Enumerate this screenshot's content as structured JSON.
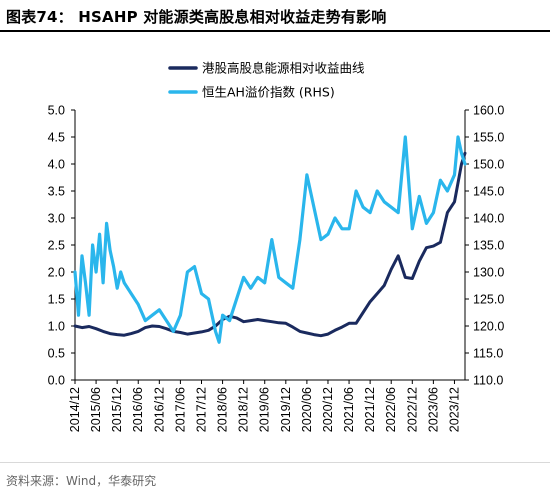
{
  "title": "图表74：  HSAHP 对能源类高股息相对收益走势有影响",
  "source": "资料来源：Wind，华泰研究",
  "colors": {
    "navy": "#1a2a5e",
    "cyan": "#2ab6ec"
  },
  "chart_data": {
    "type": "line",
    "title": "图表74：  HSAHP 对能源类高股息相对收益走势有影响",
    "x_categories": [
      "2014/12",
      "2015/06",
      "2015/12",
      "2016/06",
      "2016/12",
      "2017/06",
      "2017/12",
      "2018/06",
      "2018/12",
      "2019/06",
      "2019/12",
      "2020/06",
      "2020/12",
      "2021/06",
      "2021/12",
      "2022/06",
      "2022/12",
      "2023/06",
      "2023/12"
    ],
    "x_range": [
      "2014-12",
      "2024-03"
    ],
    "y_left": {
      "lim": [
        0.0,
        5.0
      ],
      "ticks": [
        "0.0",
        "0.5",
        "1.0",
        "1.5",
        "2.0",
        "2.5",
        "3.0",
        "3.5",
        "4.0",
        "4.5",
        "5.0"
      ]
    },
    "y_right": {
      "lim": [
        110.0,
        160.0
      ],
      "ticks": [
        "110.0",
        "115.0",
        "120.0",
        "125.0",
        "130.0",
        "135.0",
        "140.0",
        "145.0",
        "150.0",
        "155.0",
        "160.0"
      ]
    },
    "legend_position": "top-right",
    "grid": false,
    "series": [
      {
        "name": "港股高股息能源相对收益曲线",
        "axis": "left",
        "color": "#1a2a5e",
        "points": [
          [
            "2014-12",
            1.0
          ],
          [
            "2015-02",
            0.97
          ],
          [
            "2015-04",
            0.99
          ],
          [
            "2015-06",
            0.95
          ],
          [
            "2015-08",
            0.9
          ],
          [
            "2015-10",
            0.86
          ],
          [
            "2015-12",
            0.84
          ],
          [
            "2016-02",
            0.83
          ],
          [
            "2016-04",
            0.86
          ],
          [
            "2016-06",
            0.9
          ],
          [
            "2016-08",
            0.97
          ],
          [
            "2016-10",
            1.0
          ],
          [
            "2016-12",
            0.99
          ],
          [
            "2017-02",
            0.95
          ],
          [
            "2017-04",
            0.9
          ],
          [
            "2017-06",
            0.88
          ],
          [
            "2017-08",
            0.85
          ],
          [
            "2017-10",
            0.87
          ],
          [
            "2017-12",
            0.89
          ],
          [
            "2018-02",
            0.92
          ],
          [
            "2018-04",
            1.0
          ],
          [
            "2018-06",
            1.12
          ],
          [
            "2018-08",
            1.18
          ],
          [
            "2018-10",
            1.15
          ],
          [
            "2018-12",
            1.08
          ],
          [
            "2019-02",
            1.1
          ],
          [
            "2019-04",
            1.12
          ],
          [
            "2019-06",
            1.1
          ],
          [
            "2019-08",
            1.08
          ],
          [
            "2019-10",
            1.06
          ],
          [
            "2019-12",
            1.05
          ],
          [
            "2020-02",
            0.98
          ],
          [
            "2020-04",
            0.9
          ],
          [
            "2020-06",
            0.87
          ],
          [
            "2020-08",
            0.84
          ],
          [
            "2020-10",
            0.82
          ],
          [
            "2020-12",
            0.85
          ],
          [
            "2021-02",
            0.92
          ],
          [
            "2021-04",
            0.98
          ],
          [
            "2021-06",
            1.05
          ],
          [
            "2021-08",
            1.05
          ],
          [
            "2021-10",
            1.25
          ],
          [
            "2021-12",
            1.45
          ],
          [
            "2022-02",
            1.6
          ],
          [
            "2022-04",
            1.75
          ],
          [
            "2022-06",
            2.05
          ],
          [
            "2022-08",
            2.3
          ],
          [
            "2022-10",
            1.9
          ],
          [
            "2022-12",
            1.88
          ],
          [
            "2023-02",
            2.2
          ],
          [
            "2023-04",
            2.45
          ],
          [
            "2023-06",
            2.48
          ],
          [
            "2023-08",
            2.55
          ],
          [
            "2023-10",
            3.1
          ],
          [
            "2023-12",
            3.3
          ],
          [
            "2024-02",
            4.0
          ],
          [
            "2024-03",
            4.2
          ]
        ]
      },
      {
        "name": "恒生AH溢价指数 (RHS)",
        "axis": "right",
        "color": "#2ab6ec",
        "points": [
          [
            "2014-12",
            130.0
          ],
          [
            "2015-01",
            122.0
          ],
          [
            "2015-02",
            133.0
          ],
          [
            "2015-03",
            128.0
          ],
          [
            "2015-04",
            122.0
          ],
          [
            "2015-05",
            135.0
          ],
          [
            "2015-06",
            130.0
          ],
          [
            "2015-07",
            137.0
          ],
          [
            "2015-08",
            128.0
          ],
          [
            "2015-09",
            139.0
          ],
          [
            "2015-10",
            134.0
          ],
          [
            "2015-11",
            131.0
          ],
          [
            "2015-12",
            127.0
          ],
          [
            "2016-01",
            130.0
          ],
          [
            "2016-02",
            128.0
          ],
          [
            "2016-04",
            126.0
          ],
          [
            "2016-06",
            124.0
          ],
          [
            "2016-08",
            121.0
          ],
          [
            "2016-10",
            122.0
          ],
          [
            "2016-12",
            123.0
          ],
          [
            "2017-02",
            121.0
          ],
          [
            "2017-04",
            119.0
          ],
          [
            "2017-06",
            122.0
          ],
          [
            "2017-08",
            130.0
          ],
          [
            "2017-10",
            131.0
          ],
          [
            "2017-12",
            126.0
          ],
          [
            "2018-02",
            125.0
          ],
          [
            "2018-04",
            119.0
          ],
          [
            "2018-05",
            117.0
          ],
          [
            "2018-06",
            122.0
          ],
          [
            "2018-08",
            121.0
          ],
          [
            "2018-10",
            125.0
          ],
          [
            "2018-12",
            129.0
          ],
          [
            "2019-02",
            127.0
          ],
          [
            "2019-04",
            129.0
          ],
          [
            "2019-06",
            128.0
          ],
          [
            "2019-08",
            136.0
          ],
          [
            "2019-10",
            129.0
          ],
          [
            "2019-12",
            128.0
          ],
          [
            "2020-02",
            127.0
          ],
          [
            "2020-04",
            136.0
          ],
          [
            "2020-06",
            148.0
          ],
          [
            "2020-08",
            142.0
          ],
          [
            "2020-10",
            136.0
          ],
          [
            "2020-12",
            137.0
          ],
          [
            "2021-02",
            140.0
          ],
          [
            "2021-04",
            138.0
          ],
          [
            "2021-06",
            138.0
          ],
          [
            "2021-08",
            145.0
          ],
          [
            "2021-10",
            142.0
          ],
          [
            "2021-12",
            141.0
          ],
          [
            "2022-02",
            145.0
          ],
          [
            "2022-04",
            143.0
          ],
          [
            "2022-06",
            142.0
          ],
          [
            "2022-08",
            141.0
          ],
          [
            "2022-10",
            155.0
          ],
          [
            "2022-12",
            138.0
          ],
          [
            "2023-02",
            144.0
          ],
          [
            "2023-04",
            139.0
          ],
          [
            "2023-06",
            141.0
          ],
          [
            "2023-08",
            147.0
          ],
          [
            "2023-10",
            145.0
          ],
          [
            "2023-12",
            148.0
          ],
          [
            "2024-01",
            155.0
          ],
          [
            "2024-02",
            152.0
          ],
          [
            "2024-03",
            150.0
          ]
        ]
      }
    ]
  }
}
